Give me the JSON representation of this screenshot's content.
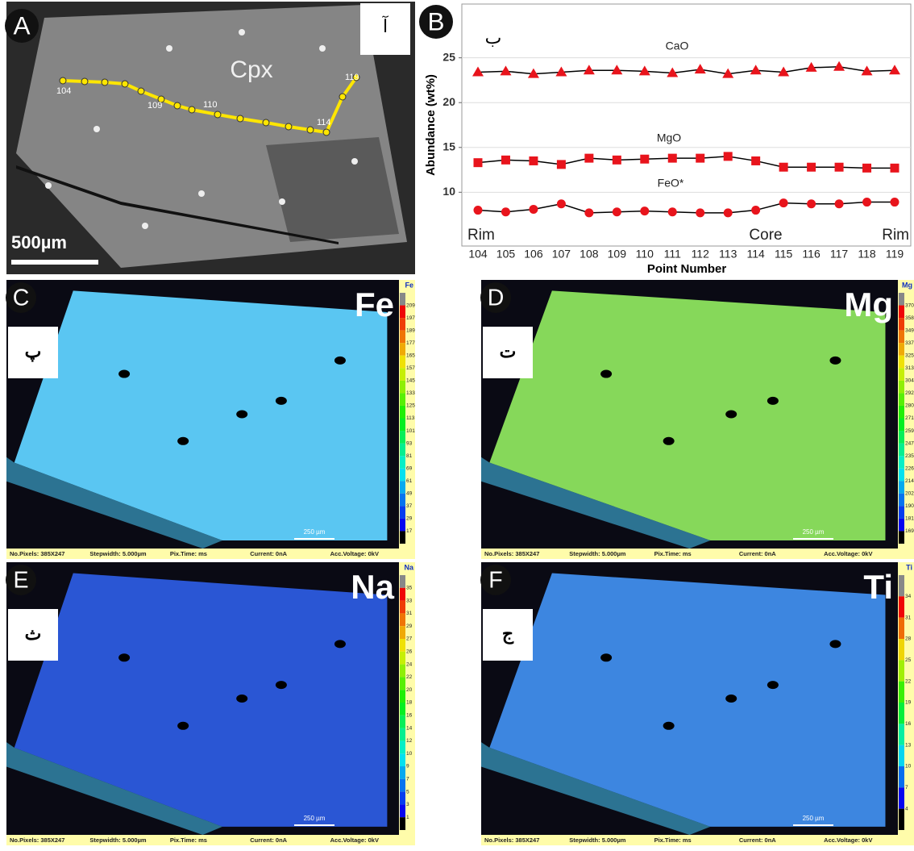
{
  "panel_a": {
    "letter": "A",
    "tag": "آ",
    "label": "Cpx",
    "scale_bar": "500µm",
    "point_labels": [
      "104",
      "109",
      "110",
      "114",
      "119"
    ]
  },
  "chart_data": {
    "type": "line",
    "letter": "B",
    "tag": "ب",
    "x_label": "Point Number",
    "y_label": "Abundance (wt%)",
    "categories": [
      "104",
      "105",
      "106",
      "107",
      "108",
      "109",
      "110",
      "111",
      "112",
      "113",
      "114",
      "115",
      "116",
      "117",
      "118",
      "119"
    ],
    "ylim": [
      4,
      31
    ],
    "yticks": [
      10,
      15,
      20,
      25
    ],
    "grid": true,
    "line_color": "#000000",
    "series": [
      {
        "name": "CaO",
        "color": "#e8141c",
        "marker": "triangle",
        "values": [
          23.4,
          23.5,
          23.2,
          23.4,
          23.6,
          23.6,
          23.5,
          23.3,
          23.7,
          23.2,
          23.6,
          23.4,
          23.9,
          24.0,
          23.5,
          23.6
        ]
      },
      {
        "name": "MgO",
        "color": "#e8141c",
        "marker": "square",
        "values": [
          13.3,
          13.6,
          13.5,
          13.1,
          13.8,
          13.6,
          13.7,
          13.8,
          13.8,
          14.0,
          13.5,
          12.8,
          12.8,
          12.8,
          12.7,
          12.7
        ]
      },
      {
        "name": "FeO*",
        "color": "#e8141c",
        "marker": "circle",
        "values": [
          8.0,
          7.8,
          8.1,
          8.7,
          7.7,
          7.8,
          7.9,
          7.8,
          7.7,
          7.7,
          8.0,
          8.8,
          8.7,
          8.7,
          8.9,
          8.9
        ]
      }
    ],
    "annotations": [
      "Rim",
      "Core",
      "Rim"
    ]
  },
  "maps": [
    {
      "letter": "C",
      "tag": "پ",
      "element": "Fe",
      "corner_label": "Fe",
      "color": "#5ac6f2",
      "scale": [
        209,
        197,
        189,
        177,
        165,
        157,
        145,
        133,
        125,
        113,
        101,
        93,
        81,
        69,
        61,
        49,
        37,
        29,
        17
      ],
      "scale_bar": "250 µm",
      "footer": [
        "No.Pixels: 385X247",
        "Stepwidth: 5.000µm",
        "Pix.Time: ms",
        "Current: 0nA",
        "Acc.Voltage: 0kV"
      ]
    },
    {
      "letter": "D",
      "tag": "ت",
      "element": "Mg",
      "corner_label": "Mg",
      "color": "#86d85a",
      "scale": [
        370,
        358,
        349,
        337,
        325,
        313,
        304,
        292,
        280,
        271,
        259,
        247,
        235,
        226,
        214,
        202,
        190,
        181,
        169
      ],
      "scale_bar": "250 µm",
      "footer": [
        "No.Pixels: 385X247",
        "Stepwidth: 5.000µm",
        "Pix.Time: ms",
        "Current: 0nA",
        "Acc.Voltage: 0kV"
      ]
    },
    {
      "letter": "E",
      "tag": "ث",
      "element": "Na",
      "corner_label": "Na",
      "color": "#2a56d4",
      "scale": [
        35,
        33,
        31,
        29,
        27,
        26,
        24,
        22,
        20,
        18,
        16,
        14,
        12,
        10,
        9,
        7,
        5,
        3,
        1
      ],
      "scale_bar": "250 µm",
      "footer": [
        "No.Pixels: 385X247",
        "Stepwidth: 5.000µm",
        "Pix.Time: ms",
        "Current: 0nA",
        "Acc.Voltage: 0kV"
      ]
    },
    {
      "letter": "F",
      "tag": "ج",
      "element": "Ti",
      "corner_label": "Ti",
      "color": "#3d86e0",
      "scale": [
        34,
        31,
        28,
        25,
        22,
        19,
        16,
        13,
        10,
        7,
        4
      ],
      "scale_bar": "250 µm",
      "footer": [
        "No.Pixels: 385X247",
        "Stepwidth: 5.000µm",
        "Pix.Time: ms",
        "Current: 0nA",
        "Acc.Voltage: 0kV"
      ]
    }
  ]
}
